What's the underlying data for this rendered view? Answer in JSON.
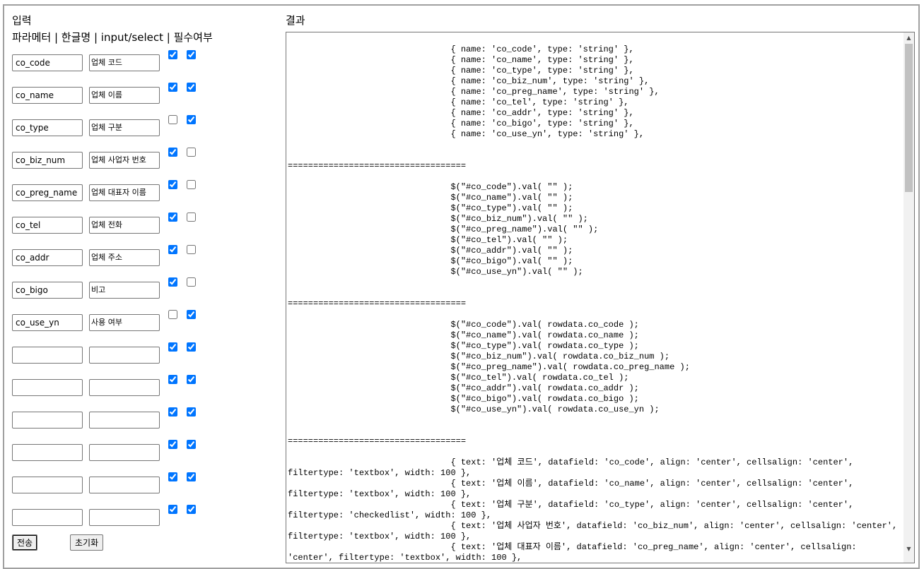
{
  "input_section": {
    "title": "입력",
    "columns_header": "파라메터 | 한글명 | input/select | 필수여부",
    "rows": [
      {
        "param": "co_code",
        "label": "업체 코드",
        "input": true,
        "required": true
      },
      {
        "param": "co_name",
        "label": "업체 이름",
        "input": true,
        "required": true
      },
      {
        "param": "co_type",
        "label": "업체 구분",
        "input": false,
        "required": true
      },
      {
        "param": "co_biz_num",
        "label": "업체 사업자 번호",
        "input": true,
        "required": false
      },
      {
        "param": "co_preg_name",
        "label": "업체 대표자 이름",
        "input": true,
        "required": false
      },
      {
        "param": "co_tel",
        "label": "업체 전화",
        "input": true,
        "required": false
      },
      {
        "param": "co_addr",
        "label": "업체 주소",
        "input": true,
        "required": false
      },
      {
        "param": "co_bigo",
        "label": "비고",
        "input": true,
        "required": false
      },
      {
        "param": "co_use_yn",
        "label": "사용 여부",
        "input": false,
        "required": true
      },
      {
        "param": "",
        "label": "",
        "input": true,
        "required": true
      },
      {
        "param": "",
        "label": "",
        "input": true,
        "required": true
      },
      {
        "param": "",
        "label": "",
        "input": true,
        "required": true
      },
      {
        "param": "",
        "label": "",
        "input": true,
        "required": true
      },
      {
        "param": "",
        "label": "",
        "input": true,
        "required": true
      },
      {
        "param": "",
        "label": "",
        "input": true,
        "required": true
      }
    ],
    "submit_label": "전송",
    "reset_label": "초기화"
  },
  "result_section": {
    "title": "결과",
    "output": "\n\t\t\t\t{ name: 'co_code', type: 'string' },\n\t\t\t\t{ name: 'co_name', type: 'string' },\n\t\t\t\t{ name: 'co_type', type: 'string' },\n\t\t\t\t{ name: 'co_biz_num', type: 'string' },\n\t\t\t\t{ name: 'co_preg_name', type: 'string' },\n\t\t\t\t{ name: 'co_tel', type: 'string' },\n\t\t\t\t{ name: 'co_addr', type: 'string' },\n\t\t\t\t{ name: 'co_bigo', type: 'string' },\n\t\t\t\t{ name: 'co_use_yn', type: 'string' },\n\n\n===================================\n\n\t\t\t\t$(\"#co_code\").val( \"\" );\n\t\t\t\t$(\"#co_name\").val( \"\" );\n\t\t\t\t$(\"#co_type\").val( \"\" );\n\t\t\t\t$(\"#co_biz_num\").val( \"\" );\n\t\t\t\t$(\"#co_preg_name\").val( \"\" );\n\t\t\t\t$(\"#co_tel\").val( \"\" );\n\t\t\t\t$(\"#co_addr\").val( \"\" );\n\t\t\t\t$(\"#co_bigo\").val( \"\" );\n\t\t\t\t$(\"#co_use_yn\").val( \"\" );\n\n\n===================================\n\n\t\t\t\t$(\"#co_code\").val( rowdata.co_code );\n\t\t\t\t$(\"#co_name\").val( rowdata.co_name );\n\t\t\t\t$(\"#co_type\").val( rowdata.co_type );\n\t\t\t\t$(\"#co_biz_num\").val( rowdata.co_biz_num );\n\t\t\t\t$(\"#co_preg_name\").val( rowdata.co_preg_name );\n\t\t\t\t$(\"#co_tel\").val( rowdata.co_tel );\n\t\t\t\t$(\"#co_addr\").val( rowdata.co_addr );\n\t\t\t\t$(\"#co_bigo\").val( rowdata.co_bigo );\n\t\t\t\t$(\"#co_use_yn\").val( rowdata.co_use_yn );\n\n\n===================================\n\n\t\t\t\t{ text: '업체 코드', datafield: 'co_code', align: 'center', cellsalign: 'center', filtertype: 'textbox', width: 100 },\n\t\t\t\t{ text: '업체 이름', datafield: 'co_name', align: 'center', cellsalign: 'center', filtertype: 'textbox', width: 100 },\n\t\t\t\t{ text: '업체 구분', datafield: 'co_type', align: 'center', cellsalign: 'center', filtertype: 'checkedlist', width: 100 },\n\t\t\t\t{ text: '업체 사업자 번호', datafield: 'co_biz_num', align: 'center', cellsalign: 'center', filtertype: 'textbox', width: 100 },\n\t\t\t\t{ text: '업체 대표자 이름', datafield: 'co_preg_name', align: 'center', cellsalign: 'center', filtertype: 'textbox', width: 100 },"
  }
}
